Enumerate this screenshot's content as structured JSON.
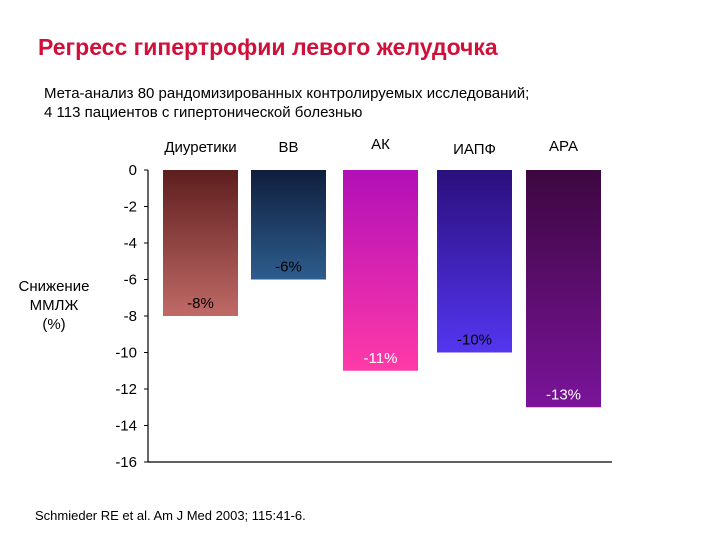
{
  "header": {
    "title": "Регресс гипертрофии левого желудочка",
    "subtitle_line1": "Мета-анализ 80 рандомизированных контролируемых исследований;",
    "subtitle_line2": "4 113 пациентов с гипертонической болезнью"
  },
  "citation": "Schmieder RE et al.  Am J Med 2003; 115:41-6.",
  "chart_data": {
    "type": "bar",
    "title": "Регресс гипертрофии левого желудочка",
    "ylabel_lines": [
      "Снижение",
      "ММЛЖ",
      "(%)"
    ],
    "categories": [
      "Диуретики",
      "ВВ",
      "АК",
      "ИАПФ",
      "АРА"
    ],
    "values": [
      -8,
      -6,
      -11,
      -10,
      -13
    ],
    "data_labels": [
      "-8%",
      "-6%",
      "-11%",
      "-10%",
      "-13%"
    ],
    "ylim": [
      -16,
      0
    ],
    "yticks": [
      0,
      -2,
      -4,
      -6,
      -8,
      -10,
      -12,
      -14,
      -16
    ],
    "grid": false,
    "colors": [
      [
        "#5e1e1e",
        "#c06a66"
      ],
      [
        "#0f1e3c",
        "#2e5d8e"
      ],
      [
        "#b10fb8",
        "#ff3aa8"
      ],
      [
        "#2a0f7c",
        "#5436f0"
      ],
      [
        "#3d0740",
        "#7a149a"
      ]
    ],
    "label_colors": [
      "#000000",
      "#000000",
      "#ffffff",
      "#000000",
      "#ffffff"
    ]
  }
}
